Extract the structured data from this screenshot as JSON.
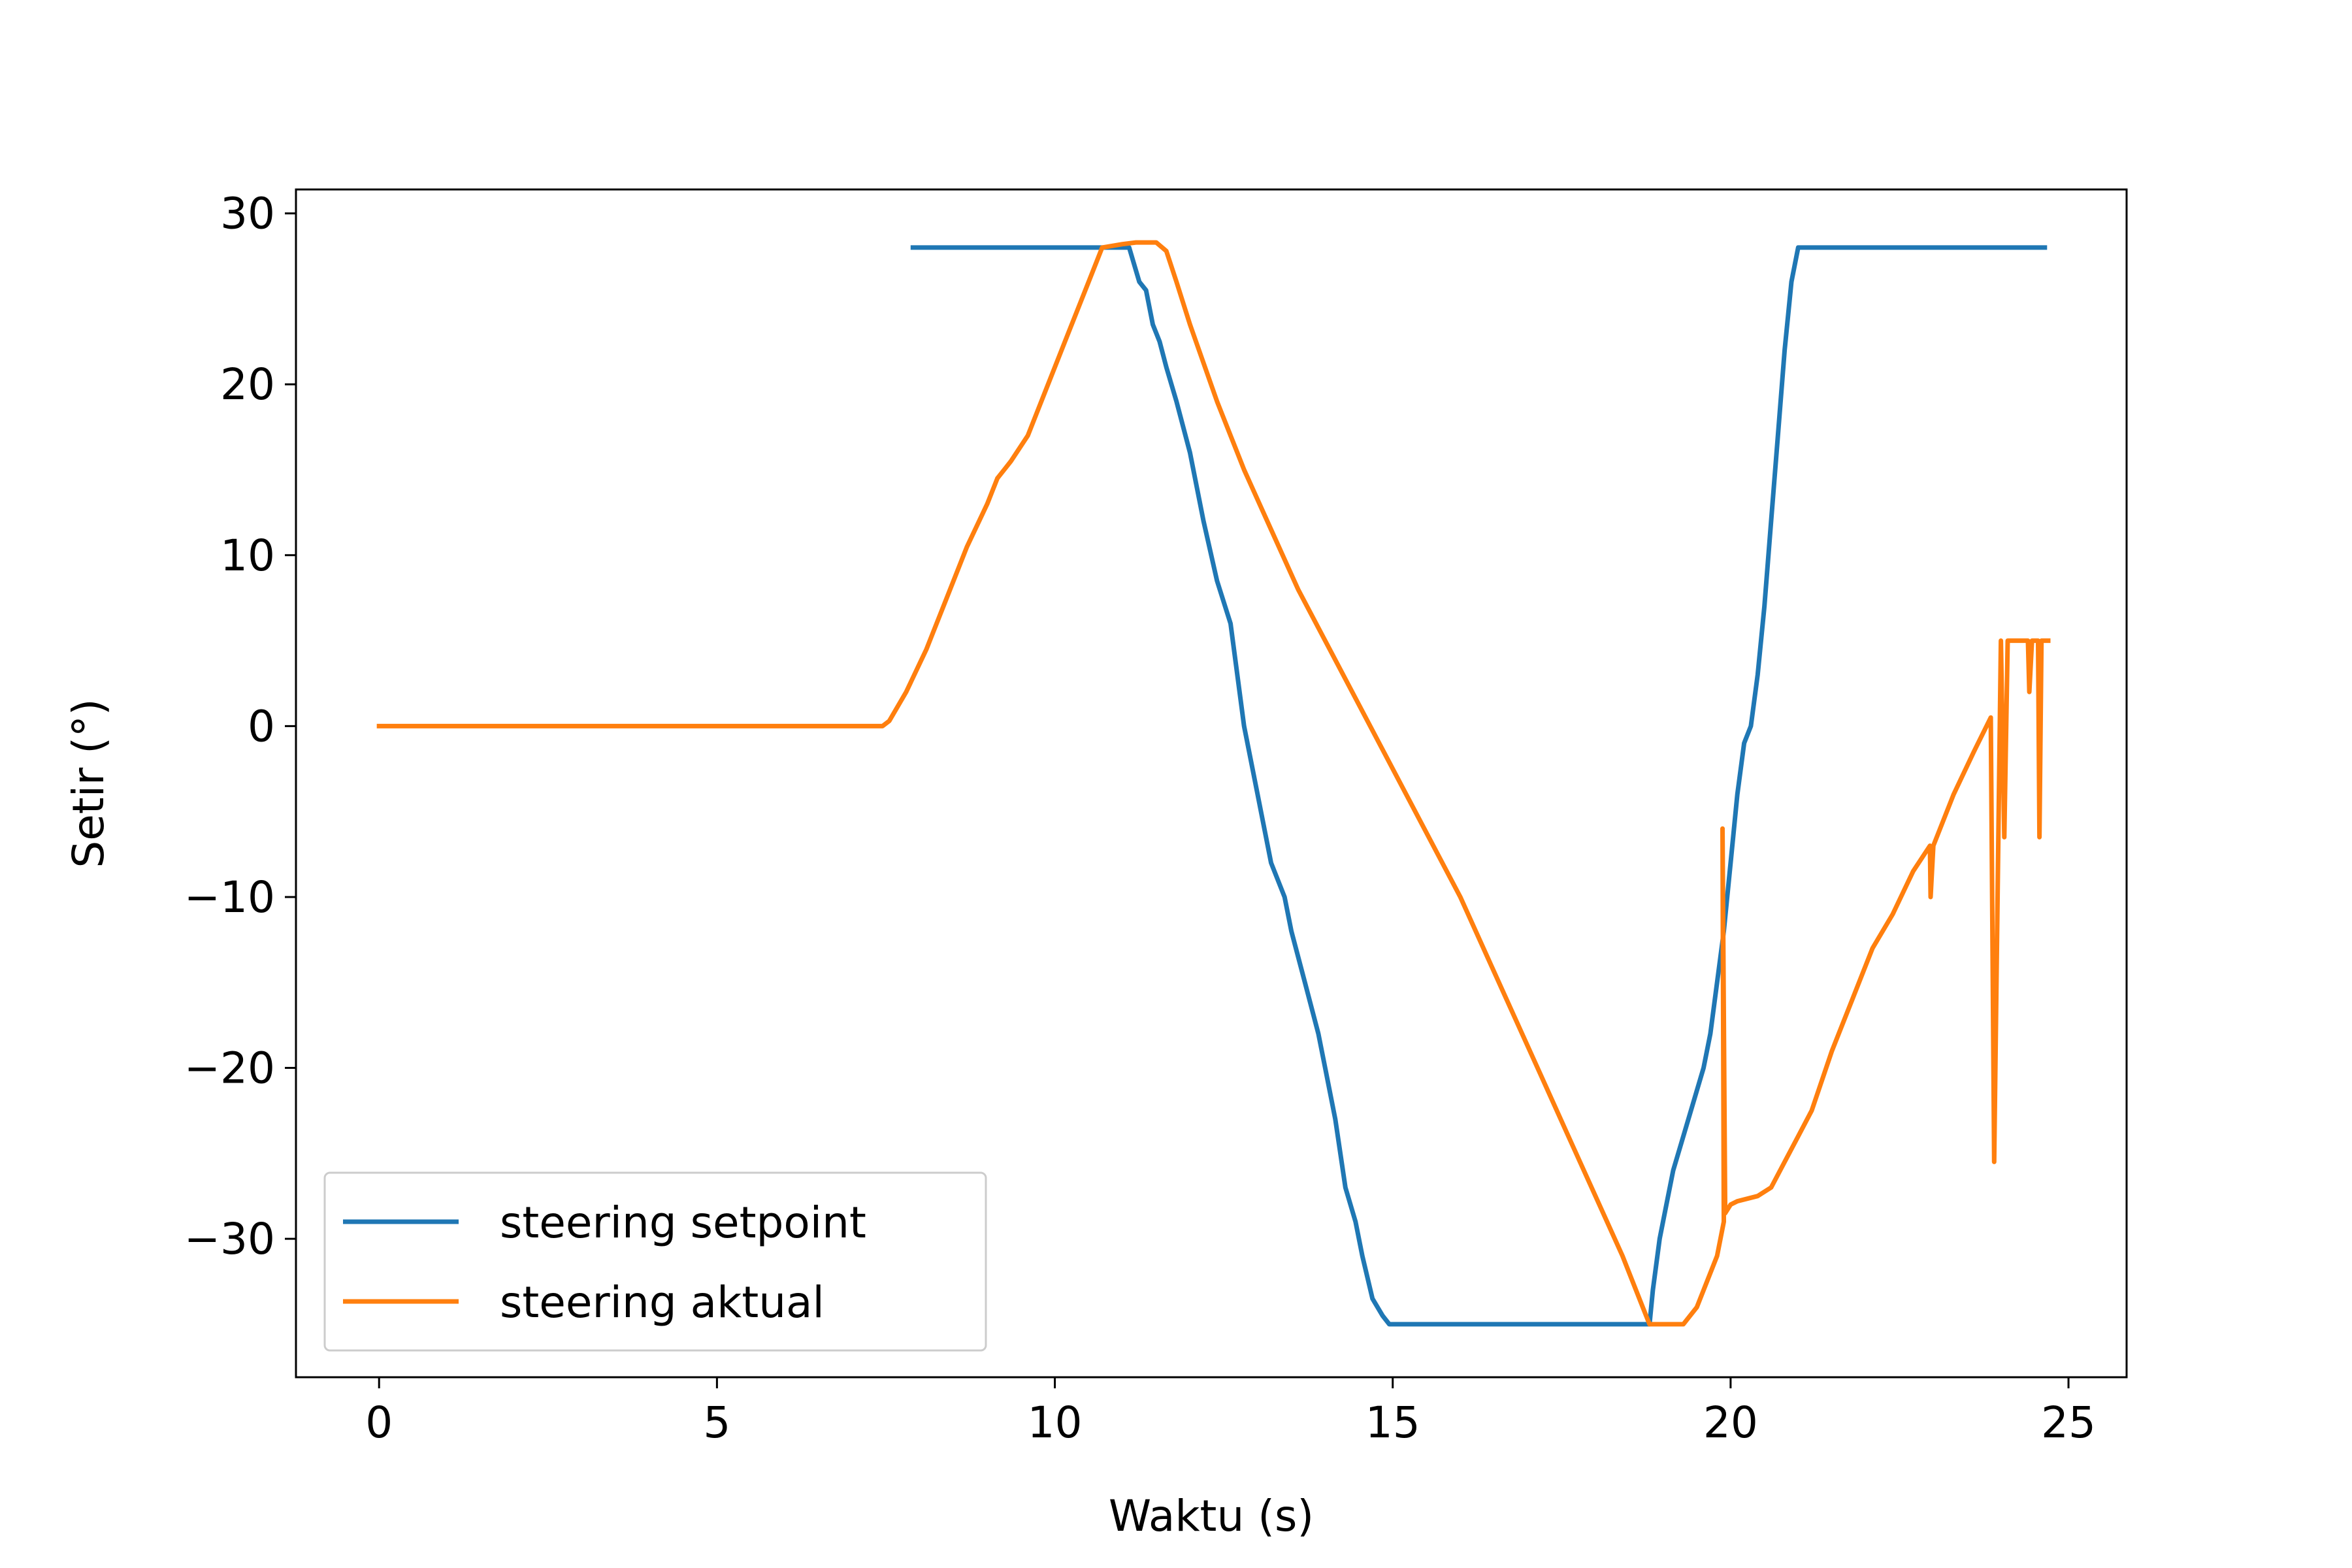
{
  "chart_data": {
    "type": "line",
    "title": "",
    "xlabel": "Waktu (s)",
    "ylabel": "Setir (°)",
    "xlim": [
      -1.23,
      25.86
    ],
    "ylim": [
      -38.1,
      31.4
    ],
    "xticks": [
      0,
      5,
      10,
      15,
      20,
      25
    ],
    "xtick_labels": [
      "0",
      "5",
      "10",
      "15",
      "20",
      "25"
    ],
    "yticks": [
      30,
      20,
      10,
      0,
      -10,
      -20,
      -30
    ],
    "ytick_labels": [
      "30",
      "20",
      "10",
      "0",
      "−10",
      "−20",
      "−30"
    ],
    "grid": false,
    "legend_position": "lower-left",
    "series": [
      {
        "name": "steering setpoint",
        "color": "#1f77b4",
        "points": [
          [
            7.9,
            28
          ],
          [
            11.1,
            28
          ],
          [
            11.25,
            26
          ],
          [
            11.35,
            25.5
          ],
          [
            11.45,
            23.5
          ],
          [
            11.55,
            22.5
          ],
          [
            11.65,
            21
          ],
          [
            11.8,
            19
          ],
          [
            12.0,
            16
          ],
          [
            12.2,
            12
          ],
          [
            12.4,
            8.5
          ],
          [
            12.6,
            6
          ],
          [
            12.8,
            0
          ],
          [
            13.0,
            -4
          ],
          [
            13.2,
            -8
          ],
          [
            13.4,
            -10
          ],
          [
            13.5,
            -12
          ],
          [
            13.7,
            -15
          ],
          [
            13.9,
            -18
          ],
          [
            14.0,
            -20
          ],
          [
            14.15,
            -23
          ],
          [
            14.3,
            -27
          ],
          [
            14.45,
            -29
          ],
          [
            14.55,
            -31
          ],
          [
            14.7,
            -33.5
          ],
          [
            14.85,
            -34.5
          ],
          [
            14.95,
            -35
          ],
          [
            18.8,
            -35
          ],
          [
            18.85,
            -33
          ],
          [
            18.95,
            -30
          ],
          [
            19.05,
            -28
          ],
          [
            19.15,
            -26
          ],
          [
            19.3,
            -24
          ],
          [
            19.45,
            -22
          ],
          [
            19.6,
            -20
          ],
          [
            19.7,
            -18
          ],
          [
            19.8,
            -15
          ],
          [
            19.9,
            -12
          ],
          [
            20.0,
            -8
          ],
          [
            20.1,
            -4
          ],
          [
            20.2,
            -1
          ],
          [
            20.3,
            0
          ],
          [
            20.4,
            3
          ],
          [
            20.5,
            7
          ],
          [
            20.6,
            12
          ],
          [
            20.7,
            17
          ],
          [
            20.8,
            22
          ],
          [
            20.85,
            24
          ],
          [
            20.9,
            26
          ],
          [
            21.0,
            28
          ],
          [
            24.65,
            28
          ]
        ]
      },
      {
        "name": "steering aktual",
        "color": "#ff7f0e",
        "points": [
          [
            0,
            0
          ],
          [
            7.45,
            0
          ],
          [
            7.55,
            0.3
          ],
          [
            7.8,
            2
          ],
          [
            8.1,
            4.5
          ],
          [
            8.4,
            7.5
          ],
          [
            8.7,
            10.5
          ],
          [
            9.0,
            13
          ],
          [
            9.15,
            14.5
          ],
          [
            9.25,
            15
          ],
          [
            9.35,
            15.5
          ],
          [
            9.6,
            17
          ],
          [
            9.9,
            20
          ],
          [
            10.2,
            23
          ],
          [
            10.5,
            26
          ],
          [
            10.7,
            28
          ],
          [
            11.0,
            28.2
          ],
          [
            11.2,
            28.3
          ],
          [
            11.5,
            28.3
          ],
          [
            11.65,
            27.8
          ],
          [
            11.8,
            26
          ],
          [
            12.0,
            23.5
          ],
          [
            12.4,
            19
          ],
          [
            12.8,
            15
          ],
          [
            13.2,
            11.5
          ],
          [
            13.6,
            8
          ],
          [
            14.0,
            5
          ],
          [
            14.4,
            2
          ],
          [
            14.8,
            -1
          ],
          [
            15.2,
            -4
          ],
          [
            15.6,
            -7
          ],
          [
            16.0,
            -10
          ],
          [
            16.4,
            -13.5
          ],
          [
            16.8,
            -17
          ],
          [
            17.2,
            -20.5
          ],
          [
            17.6,
            -24
          ],
          [
            18.0,
            -27.5
          ],
          [
            18.4,
            -31
          ],
          [
            18.7,
            -34
          ],
          [
            18.8,
            -35
          ],
          [
            19.3,
            -35
          ],
          [
            19.5,
            -34
          ],
          [
            19.8,
            -31
          ],
          [
            19.9,
            -29
          ],
          [
            19.88,
            -6
          ],
          [
            19.92,
            -28.5
          ],
          [
            20.0,
            -28
          ],
          [
            20.1,
            -27.8
          ],
          [
            20.4,
            -27.5
          ],
          [
            20.6,
            -27
          ],
          [
            20.8,
            -25.5
          ],
          [
            21.0,
            -24
          ],
          [
            21.2,
            -22.5
          ],
          [
            21.5,
            -19
          ],
          [
            21.8,
            -16
          ],
          [
            22.1,
            -13
          ],
          [
            22.4,
            -11
          ],
          [
            22.7,
            -8.5
          ],
          [
            22.95,
            -7
          ],
          [
            22.96,
            -10
          ],
          [
            23.0,
            -7
          ],
          [
            23.3,
            -4
          ],
          [
            23.6,
            -1.5
          ],
          [
            23.85,
            0.5
          ],
          [
            23.9,
            -25.5
          ],
          [
            24.0,
            5
          ],
          [
            24.05,
            -6.5
          ],
          [
            24.1,
            5
          ],
          [
            24.4,
            5
          ],
          [
            24.42,
            2
          ],
          [
            24.46,
            5
          ],
          [
            24.55,
            5
          ],
          [
            24.57,
            -6.5
          ],
          [
            24.6,
            5
          ],
          [
            24.7,
            5
          ]
        ]
      }
    ]
  }
}
